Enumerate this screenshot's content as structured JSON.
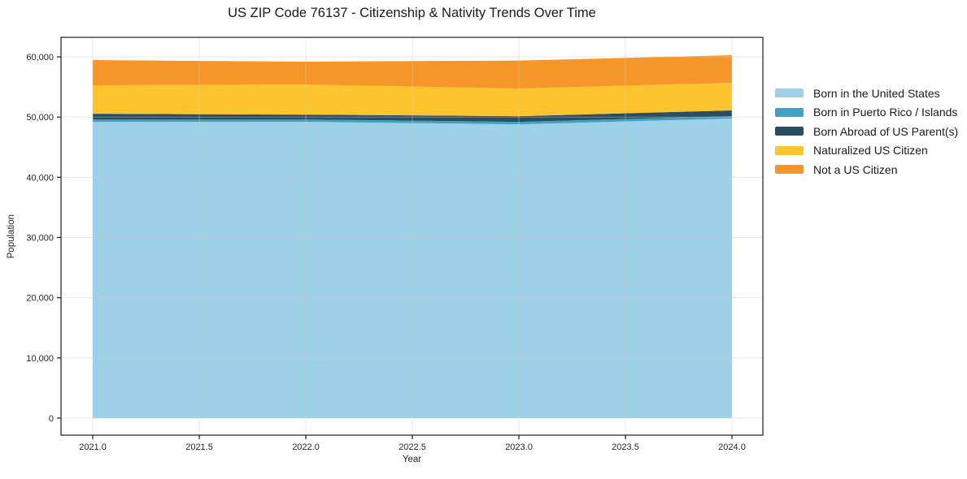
{
  "page_title": "US ZIP Code 76137 - Citizenship & Nativity Trends Over Time",
  "colors": {
    "background": "#ffffff",
    "frame": "#1a1a1a",
    "grid": "#cccccc",
    "tick_text": "#262626"
  },
  "chart_data": {
    "type": "area",
    "stacked": true,
    "title": "US ZIP Code 76137 - Citizenship & Nativity Trends Over Time",
    "xlabel": "Year",
    "ylabel": "Population",
    "grid": true,
    "legend_position": "right",
    "x": [
      2021,
      2022,
      2023,
      2024
    ],
    "series": [
      {
        "name": "Born in the United States",
        "color": "#9cd1e8",
        "values": [
          49200,
          49200,
          48800,
          49750
        ]
      },
      {
        "name": "Born in Puerto Rico / Islands",
        "color": "#3fa2c2",
        "values": [
          400,
          400,
          400,
          400
        ]
      },
      {
        "name": "Born Abroad of US Parent(s)",
        "color": "#2a4d61",
        "values": [
          950,
          800,
          950,
          950
        ]
      },
      {
        "name": "Naturalized US Citizen",
        "color": "#fdc42d",
        "values": [
          4730,
          5000,
          4590,
          4590
        ]
      },
      {
        "name": "Not a US Citizen",
        "color": "#f79628",
        "values": [
          4180,
          3790,
          4650,
          4580
        ]
      }
    ],
    "totals": [
      59460,
      59190,
      59390,
      60270
    ],
    "xlim": [
      2020.851,
      2024.145
    ],
    "ylim": [
      -2830,
      63240
    ],
    "xticks": {
      "values": [
        2021.0,
        2021.5,
        2022.0,
        2022.5,
        2023.0,
        2023.5,
        2024.0
      ],
      "labels": [
        "2021.0",
        "2021.5",
        "2022.0",
        "2022.5",
        "2023.0",
        "2023.5",
        "2024.0"
      ]
    },
    "yticks": {
      "values": [
        0,
        10000,
        20000,
        30000,
        40000,
        50000,
        60000
      ],
      "labels": [
        "0",
        "10,000",
        "20,000",
        "30,000",
        "40,000",
        "50,000",
        "60,000"
      ]
    }
  }
}
